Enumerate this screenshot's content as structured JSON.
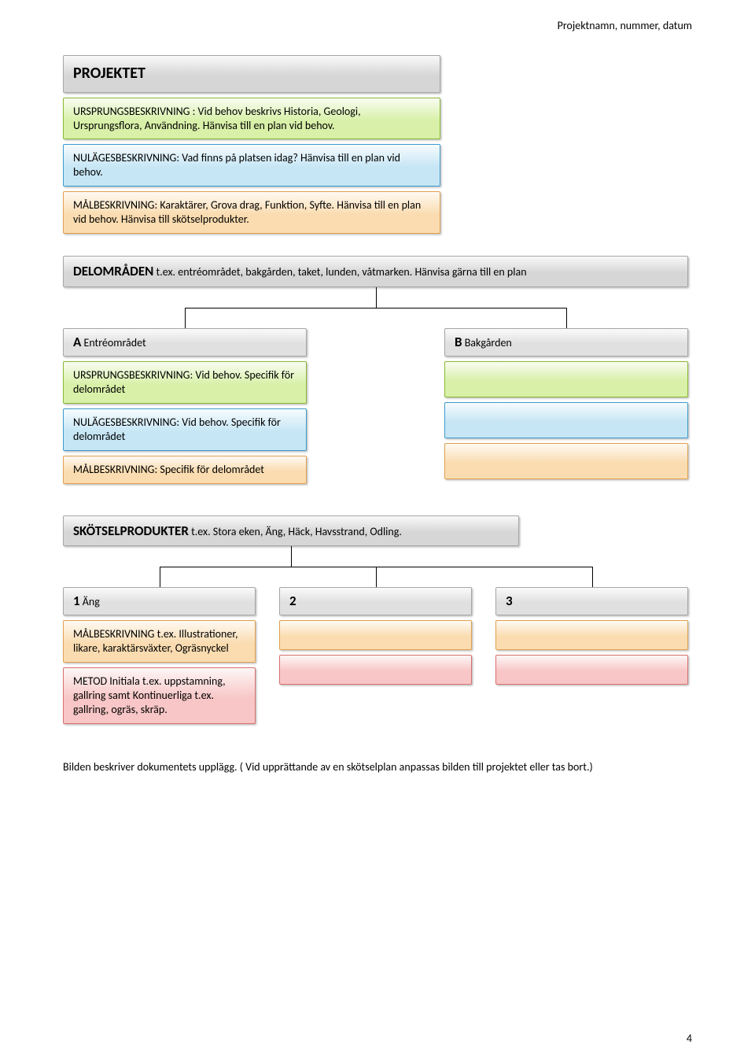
{
  "header": {
    "text": "Projektnamn, nummer, datum"
  },
  "page_number": "4",
  "colors": {
    "grey_fill": "#e0e0e0",
    "grey_fill_dark": "#d6d6d6",
    "grey_border": "#a6a6a6",
    "green_fill": "#d8f0a8",
    "green_border": "#8ab833",
    "blue_fill": "#c6e6f5",
    "blue_border": "#3e9bcc",
    "orange_fill": "#fadcb0",
    "orange_border": "#e0a050",
    "pink_fill": "#f8c6c6",
    "pink_border": "#d87070"
  },
  "section1": {
    "title": "PROJEKTET",
    "row1": "URSPRUNGSBESKRIVNING : Vid behov beskrivs Historia, Geologi, Ursprungsflora, Användning. Hänvisa till en plan vid behov.",
    "row2": "NULÄGESBESKRIVNING: Vad finns på platsen idag? Hänvisa till en plan vid behov.",
    "row3": "MÅLBESKRIVNING: Karaktärer, Grova drag, Funktion, Syfte. Hänvisa till en plan vid behov. Hänvisa till skötselprodukter."
  },
  "section2": {
    "title": "DELOMRÅDEN",
    "title_rest": " t.ex. entréområdet, bakgården, taket, lunden, våtmarken. Hänvisa gärna till en plan",
    "A": {
      "head_prefix": "A",
      "head_rest": " Entréområdet",
      "r1": "URSPRUNGSBESKRIVNING: Vid behov. Specifik för delområdet",
      "r2": "NULÄGESBESKRIVNING: Vid behov. Specifik för delområdet",
      "r3": "MÅLBESKRIVNING: Specifik för delområdet"
    },
    "B": {
      "head_prefix": "B",
      "head_rest": " Bakgården"
    }
  },
  "section3": {
    "title": "SKÖTSELPRODUKTER",
    "title_rest": " t.ex. Stora eken, Äng, Häck, Havsstrand, Odling.",
    "c1": {
      "head_prefix": "1",
      "head_rest": " Äng",
      "r1": "MÅLBESKRIVNING t.ex. Illustrationer, likare, karaktärsväxter, Ogräsnyckel",
      "r2": "METOD Initiala t.ex. uppstamning, gallring samt Kontinuerliga t.ex. gallring, ogräs, skräp."
    },
    "c2": {
      "head_prefix": "2"
    },
    "c3": {
      "head_prefix": "3"
    }
  },
  "footnote": "Bilden beskriver dokumentets upplägg. ( Vid upprättande av en skötselplan anpassas bilden till projektet eller tas bort.)",
  "layout": {
    "section1_width": 480,
    "section2_col_width": 310,
    "section2_col_gap": 175,
    "section3_col_width": 245,
    "section3_col_gap": 30
  }
}
